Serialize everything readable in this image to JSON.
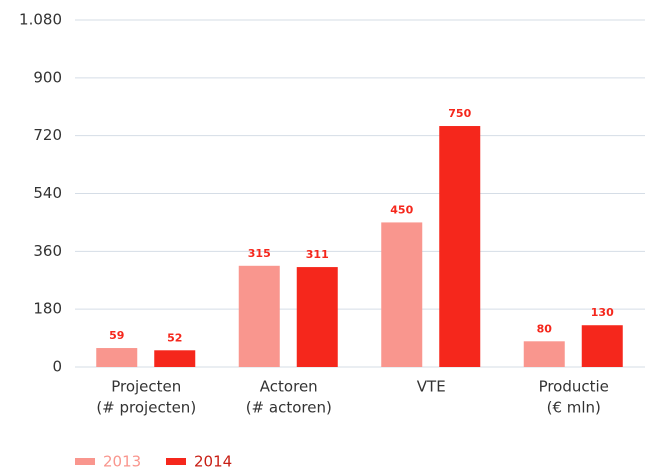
{
  "chart_data": {
    "type": "bar",
    "categories": [
      [
        "Projecten",
        "(# projecten)"
      ],
      [
        "Actoren",
        "(# actoren)"
      ],
      [
        "VTE"
      ],
      [
        "Productie",
        "(€ mln)"
      ]
    ],
    "series": [
      {
        "name": "2013",
        "color": "#f9968e",
        "values": [
          59,
          315,
          450,
          80
        ]
      },
      {
        "name": "2014",
        "color": "#f5271c",
        "values": [
          52,
          311,
          750,
          130
        ]
      }
    ],
    "ylim": [
      0,
      1080
    ],
    "yticks": [
      0,
      180,
      360,
      540,
      720,
      900,
      {
        "value": 1080,
        "label": "1.080"
      }
    ],
    "grid": true,
    "legend": "bottom-left"
  }
}
